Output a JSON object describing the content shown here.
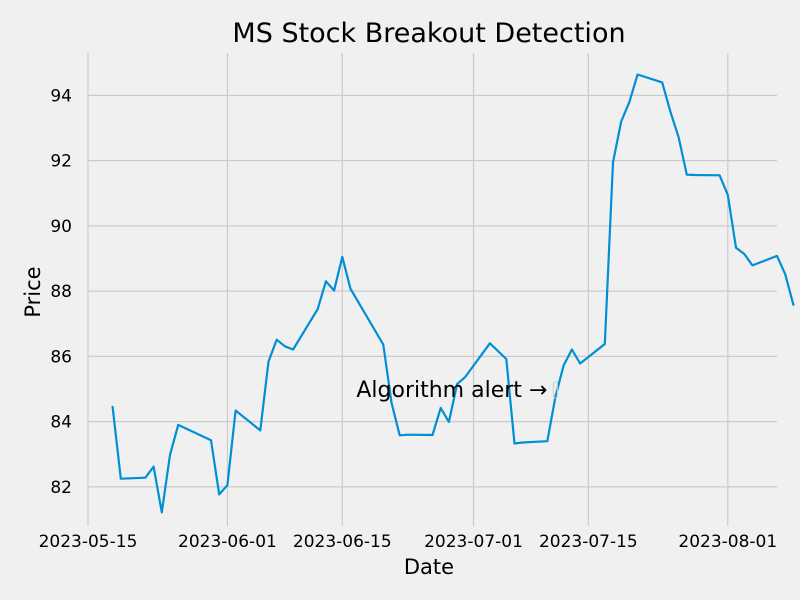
{
  "chart_data": {
    "type": "line",
    "title": "MS Stock Breakout Detection",
    "xlabel": "Date",
    "ylabel": "Price",
    "ylim": [
      80.8,
      95.3
    ],
    "xlim": [
      "2023-05-15",
      "2023-08-07"
    ],
    "grid": true,
    "x_ticks": [
      "2023-05-15",
      "2023-06-01",
      "2023-06-15",
      "2023-07-01",
      "2023-07-15",
      "2023-08-01"
    ],
    "y_ticks": [
      82,
      84,
      86,
      88,
      90,
      92,
      94
    ],
    "series": [
      {
        "color": "#008fd5",
        "x": [
          "2023-05-18",
          "2023-05-19",
          "2023-05-22",
          "2023-05-23",
          "2023-05-24",
          "2023-05-25",
          "2023-05-26",
          "2023-05-30",
          "2023-05-31",
          "2023-06-01",
          "2023-06-02",
          "2023-06-05",
          "2023-06-06",
          "2023-06-07",
          "2023-06-08",
          "2023-06-09",
          "2023-06-12",
          "2023-06-13",
          "2023-06-14",
          "2023-06-15",
          "2023-06-16",
          "2023-06-20",
          "2023-06-21",
          "2023-06-22",
          "2023-06-23",
          "2023-06-26",
          "2023-06-27",
          "2023-06-28",
          "2023-06-29",
          "2023-06-30",
          "2023-07-03",
          "2023-07-05",
          "2023-07-06",
          "2023-07-07",
          "2023-07-10",
          "2023-07-11",
          "2023-07-12",
          "2023-07-13",
          "2023-07-14",
          "2023-07-17",
          "2023-07-18",
          "2023-07-19",
          "2023-07-20",
          "2023-07-21",
          "2023-07-24",
          "2023-07-25",
          "2023-07-26",
          "2023-07-27",
          "2023-07-28",
          "2023-07-31",
          "2023-08-01",
          "2023-08-02",
          "2023-08-03",
          "2023-08-04",
          "2023-08-07",
          "2023-08-08",
          "2023-08-09"
        ],
        "values": [
          84.45,
          82.25,
          82.28,
          82.62,
          81.22,
          82.98,
          83.9,
          83.43,
          81.77,
          82.05,
          84.34,
          83.73,
          85.84,
          86.51,
          86.31,
          86.21,
          87.45,
          88.3,
          88.02,
          89.05,
          88.07,
          86.36,
          84.58,
          83.58,
          83.6,
          83.59,
          84.42,
          83.99,
          85.15,
          85.37,
          86.4,
          85.92,
          83.33,
          83.36,
          83.4,
          84.77,
          85.73,
          86.21,
          85.78,
          86.38,
          91.95,
          93.2,
          93.8,
          94.64,
          94.4,
          93.5,
          92.72,
          91.57,
          91.56,
          91.55,
          90.95,
          89.33,
          89.14,
          88.79,
          89.08,
          88.52,
          87.58
        ]
      }
    ],
    "annotations": [
      {
        "text": "Algorithm alert →",
        "x": "2023-07-10",
        "y": 85.0
      }
    ]
  }
}
